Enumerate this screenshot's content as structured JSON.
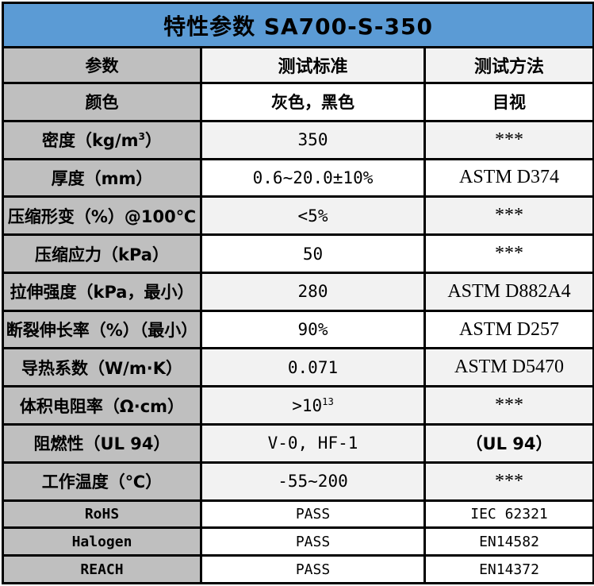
{
  "title": "特性参数  SA700-S-350",
  "colors": {
    "title_bg": "#5B9BD5",
    "label_col_bg": "#BFBFBF",
    "alt_row_bg": "#F2F2F2",
    "border": "#000000"
  },
  "header": {
    "cells": [
      "参数",
      "测试标准",
      "测试方法"
    ]
  },
  "rows": [
    {
      "shaded": false,
      "cells": [
        {
          "font": "cjk",
          "segments": [
            {
              "t": "颜色"
            }
          ]
        },
        {
          "font": "cjk",
          "segments": [
            {
              "t": "灰色，黑色"
            }
          ]
        },
        {
          "font": "cjk",
          "segments": [
            {
              "t": "目视"
            }
          ]
        }
      ]
    },
    {
      "shaded": true,
      "cells": [
        {
          "font": "cjk",
          "segments": [
            {
              "t": "密度（kg/m"
            },
            {
              "t": "3",
              "sup": true
            },
            {
              "t": "）"
            }
          ]
        },
        {
          "font": "mono",
          "segments": [
            {
              "t": "350"
            }
          ]
        },
        {
          "font": "serif",
          "segments": [
            {
              "t": "***"
            }
          ]
        }
      ]
    },
    {
      "shaded": false,
      "cells": [
        {
          "font": "cjk",
          "segments": [
            {
              "t": "厚度（mm）"
            }
          ]
        },
        {
          "font": "mono",
          "segments": [
            {
              "t": "0.6~20.0±10%"
            }
          ]
        },
        {
          "font": "serif",
          "segments": [
            {
              "t": "ASTM D374"
            }
          ]
        }
      ]
    },
    {
      "shaded": true,
      "cells": [
        {
          "font": "cjk",
          "segments": [
            {
              "t": "压缩形变（%）@100℃"
            }
          ]
        },
        {
          "font": "mono",
          "segments": [
            {
              "t": "<5%"
            }
          ]
        },
        {
          "font": "serif",
          "segments": [
            {
              "t": "***"
            }
          ]
        }
      ]
    },
    {
      "shaded": false,
      "cells": [
        {
          "font": "cjk",
          "segments": [
            {
              "t": "压缩应力（kPa）"
            }
          ]
        },
        {
          "font": "mono",
          "segments": [
            {
              "t": "50"
            }
          ]
        },
        {
          "font": "serif",
          "segments": [
            {
              "t": "***"
            }
          ]
        }
      ]
    },
    {
      "shaded": true,
      "cells": [
        {
          "font": "cjk",
          "segments": [
            {
              "t": "拉伸强度（kPa，最小）"
            }
          ]
        },
        {
          "font": "mono",
          "segments": [
            {
              "t": "280"
            }
          ]
        },
        {
          "font": "serif",
          "segments": [
            {
              "t": "ASTM D882A4"
            }
          ]
        }
      ]
    },
    {
      "shaded": false,
      "cells": [
        {
          "font": "cjk",
          "segments": [
            {
              "t": "断裂伸长率（%）（最小）"
            }
          ]
        },
        {
          "font": "mono",
          "segments": [
            {
              "t": "90%"
            }
          ]
        },
        {
          "font": "serif",
          "segments": [
            {
              "t": "ASTM D257"
            }
          ]
        }
      ]
    },
    {
      "shaded": true,
      "cells": [
        {
          "font": "cjk",
          "segments": [
            {
              "t": "导热系数（W/m·K）"
            }
          ]
        },
        {
          "font": "mono",
          "segments": [
            {
              "t": "0.071"
            }
          ]
        },
        {
          "font": "serif",
          "segments": [
            {
              "t": "ASTM D5470"
            }
          ]
        }
      ]
    },
    {
      "shaded": true,
      "cells": [
        {
          "font": "cjk",
          "segments": [
            {
              "t": "体积电阻率（Ω·cm）"
            }
          ]
        },
        {
          "font": "mono",
          "segments": [
            {
              "t": ">10"
            },
            {
              "t": "13",
              "sup": true
            }
          ]
        },
        {
          "font": "serif",
          "segments": [
            {
              "t": "***"
            }
          ]
        }
      ]
    },
    {
      "shaded": true,
      "cells": [
        {
          "font": "cjk",
          "segments": [
            {
              "t": "阻燃性（UL 94）"
            }
          ]
        },
        {
          "font": "mono",
          "segments": [
            {
              "t": "V-0, HF-1"
            }
          ]
        },
        {
          "font": "cjk",
          "segments": [
            {
              "t": "（UL 94）"
            }
          ]
        }
      ]
    },
    {
      "shaded": true,
      "cells": [
        {
          "font": "cjk",
          "segments": [
            {
              "t": "工作温度（℃）"
            }
          ]
        },
        {
          "font": "mono",
          "segments": [
            {
              "t": "-55~200"
            }
          ]
        },
        {
          "font": "serif",
          "segments": [
            {
              "t": "***"
            }
          ]
        }
      ]
    },
    {
      "shaded": false,
      "cells": [
        {
          "font": "mono-sm",
          "segments": [
            {
              "t": "RoHS"
            }
          ]
        },
        {
          "font": "mono-sm",
          "segments": [
            {
              "t": "PASS"
            }
          ]
        },
        {
          "font": "mono-sm",
          "segments": [
            {
              "t": "IEC 62321"
            }
          ]
        }
      ]
    },
    {
      "shaded": false,
      "cells": [
        {
          "font": "mono-sm",
          "segments": [
            {
              "t": "Halogen"
            }
          ]
        },
        {
          "font": "mono-sm",
          "segments": [
            {
              "t": "PASS"
            }
          ]
        },
        {
          "font": "mono-sm",
          "segments": [
            {
              "t": "EN14582"
            }
          ]
        }
      ]
    },
    {
      "shaded": false,
      "cells": [
        {
          "font": "mono-sm",
          "segments": [
            {
              "t": "REACH"
            }
          ]
        },
        {
          "font": "mono-sm",
          "segments": [
            {
              "t": "PASS"
            }
          ]
        },
        {
          "font": "mono-sm",
          "segments": [
            {
              "t": "EN14372"
            }
          ]
        }
      ]
    }
  ]
}
